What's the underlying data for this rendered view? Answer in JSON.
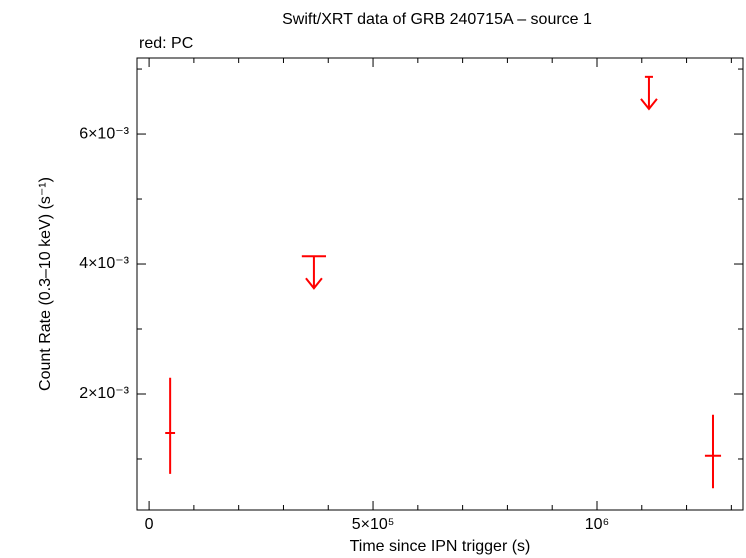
{
  "chart_data": {
    "type": "scatter",
    "title": "Swift/XRT data of GRB 240715A – source 1",
    "legend": "red: PC",
    "x_label": "Time since IPN trigger (s)",
    "y_label": "Count Rate (0.3–10 keV) (s⁻¹)",
    "xlim": [
      -27000,
      1326000
    ],
    "ylim": [
      0.000215,
      0.00717
    ],
    "xticks": [
      0,
      {
        "value": 500000,
        "label": "5×10⁵"
      },
      {
        "value": 1000000,
        "label": "10⁶"
      }
    ],
    "xticks_minor": [
      100000,
      200000,
      300000,
      400000,
      600000,
      700000,
      800000,
      900000,
      1100000,
      1200000,
      1300000
    ],
    "yticks": [
      {
        "value": 0.002,
        "label": "2×10⁻³"
      },
      {
        "value": 0.004,
        "label": "4×10⁻³"
      },
      {
        "value": 0.006,
        "label": "6×10⁻³"
      }
    ],
    "yticks_minor": [
      0.001,
      0.003,
      0.005,
      0.007
    ],
    "series": [
      {
        "color": "#ff0000",
        "x": [
          47000,
          1259000
        ],
        "xerr": [
          11000,
          18000
        ],
        "values": [
          0.0014,
          0.00105
        ],
        "yerr_plus": [
          0.00085,
          0.00063
        ],
        "yerr_minus": [
          0.00063,
          0.0005
        ]
      }
    ],
    "upper_limits": {
      "color": "#ff0000",
      "x": [
        368000,
        1116000
      ],
      "xerr": [
        27000,
        9000
      ],
      "values": [
        0.00412,
        0.00688
      ]
    }
  }
}
